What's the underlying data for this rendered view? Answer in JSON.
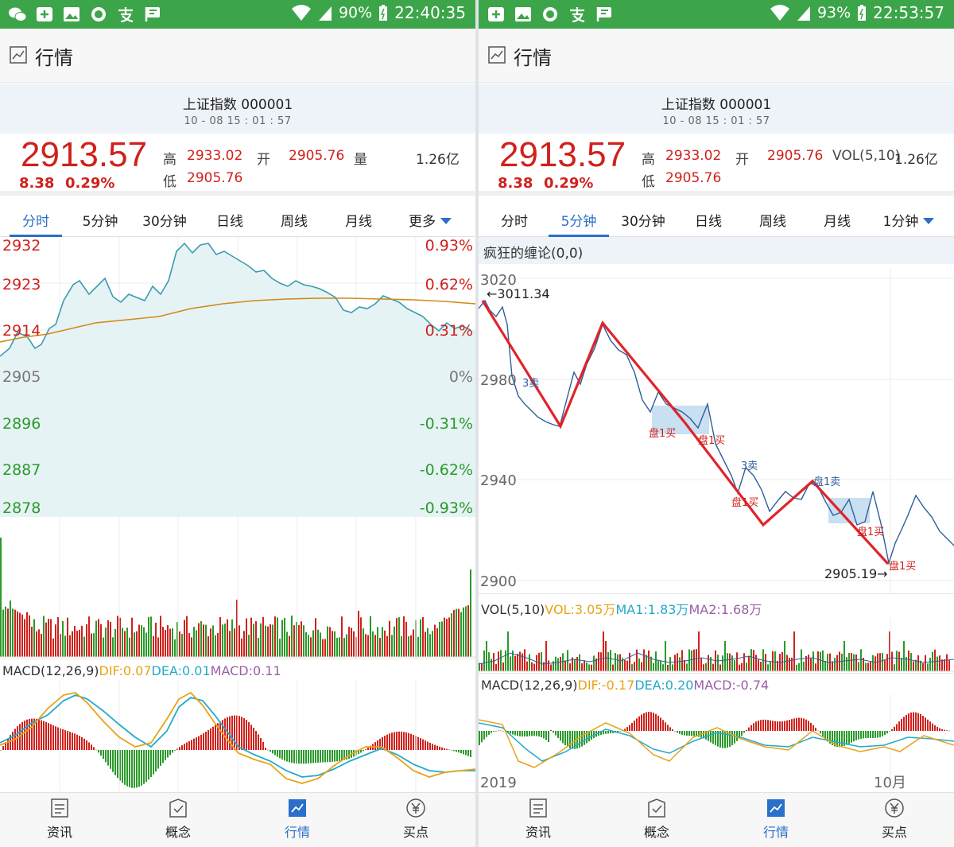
{
  "left": {
    "status": {
      "battery": "90%",
      "time": "22:40:35"
    },
    "title": "行情",
    "index_name": "上证指数 000001",
    "datetime": "10 - 08  15 : 01 : 57",
    "price": "2913.57",
    "change": "8.38",
    "change_pct": "0.29%",
    "high_label": "高",
    "high": "2933.02",
    "open_label": "开",
    "open": "2905.76",
    "vol_label": "量",
    "volume": "1.26亿",
    "low_label": "低",
    "low": "2905.76",
    "tabs": [
      "分时",
      "5分钟",
      "30分钟",
      "日线",
      "周线",
      "月线",
      "更多"
    ],
    "active_tab": 0,
    "macd_label": "MACD(12,26,9)",
    "dif": "DIF:0.07",
    "dea": "DEA:0.01",
    "macd": "MACD:0.11",
    "nav": [
      "资讯",
      "概念",
      "行情",
      "买点"
    ],
    "active_nav": 2
  },
  "right": {
    "status": {
      "battery": "93%",
      "time": "22:53:57"
    },
    "title": "行情",
    "index_name": "上证指数 000001",
    "datetime": "10 - 08  15 : 01 : 57",
    "price": "2913.57",
    "change": "8.38",
    "change_pct": "0.29%",
    "high_label": "高",
    "high": "2933.02",
    "open_label": "开",
    "open": "2905.76",
    "vol_label": "VOL(5,10)",
    "volume": "1.26亿",
    "low_label": "低",
    "low": "2905.76",
    "tabs": [
      "分时",
      "5分钟",
      "30分钟",
      "日线",
      "周线",
      "月线",
      "1分钟"
    ],
    "active_tab": 1,
    "indicator_title": "疯狂的缠论(0,0)",
    "vol_val": "VOL:3.05万",
    "ma1": "MA1:1.83万",
    "ma2": "MA2:1.68万",
    "macd_label": "MACD(12,26,9)",
    "dif": "DIF:-0.17",
    "dea": "DEA:0.20",
    "macd": "MACD:-0.74",
    "x_start": "2019",
    "x_month": "10月",
    "annotations": {
      "high": "←3011.34",
      "low": "2905.19→",
      "sell3a": "3卖",
      "buy1a": "盘1买",
      "buy1b": "盘1买",
      "sell3b": "3卖",
      "buy1c": "盘1买",
      "sell1": "盘1卖",
      "buy1d": "盘1买",
      "buy1e": "盘1买"
    },
    "nav": [
      "资讯",
      "概念",
      "行情",
      "买点"
    ],
    "active_nav": 2
  },
  "colors": {
    "up": "#d0211c",
    "down": "#2a9a2a",
    "accent": "#2a6fc9",
    "status_green": "#3ca54a",
    "dif": "#e8a317",
    "dea": "#22aacc",
    "macd": "#9b5ea6"
  },
  "chart_data": [
    {
      "type": "line",
      "title": "分时",
      "y_ticks": [
        "2932",
        "2923",
        "2914",
        "2905",
        "2896",
        "2887",
        "2878"
      ],
      "y_pct_ticks": [
        "0.93%",
        "0.62%",
        "0.31%",
        "0%",
        "-0.31%",
        "-0.62%",
        "-0.93%"
      ],
      "ylim": [
        2878,
        2932
      ],
      "series": [
        {
          "values": [
            2909,
            2911,
            2914,
            2912,
            2915,
            2914,
            2917,
            2916,
            2916,
            2918,
            2920,
            2922,
            2925,
            2923,
            2922,
            2924,
            2926,
            2925,
            2923,
            2921,
            2924,
            2926,
            2925,
            2927,
            2926,
            2924,
            2922,
            2920,
            2921,
            2924,
            2925,
            2930,
            2933,
            2931,
            2932,
            2931,
            2932,
            2930,
            2929,
            2928,
            2927,
            2925,
            2924,
            2923,
            2922,
            2923,
            2922,
            2921,
            2920,
            2921,
            2919,
            2917,
            2917,
            2918,
            2916,
            2918,
            2919,
            2920,
            2919,
            2918,
            2917,
            2916,
            2916,
            2915,
            2913,
            2914,
            2913,
            2914
          ]
        },
        {
          "values": [
            2913,
            2913,
            2913,
            2914,
            2914,
            2915,
            2915,
            2916,
            2916,
            2916,
            2917,
            2917,
            2917,
            2918,
            2918,
            2918,
            2918,
            2918,
            2919,
            2919,
            2919,
            2919,
            2919,
            2919,
            2919,
            2919,
            2919,
            2919,
            2920,
            2920,
            2920,
            2920,
            2920,
            2920,
            2920,
            2920,
            2920,
            2920,
            2920,
            2920,
            2920,
            2920,
            2920,
            2920,
            2920,
            2920,
            2920,
            2920,
            2920,
            2920,
            2920,
            2920,
            2920,
            2920,
            2920,
            2920,
            2920,
            2920,
            2920,
            2920,
            2920,
            2920,
            2920,
            2920,
            2920,
            2920,
            2920,
            2920
          ]
        }
      ]
    },
    {
      "type": "line",
      "title": "疯狂的缠论(0,0)",
      "y_ticks": [
        "3020",
        "2980",
        "2940",
        "2900"
      ],
      "ylim": [
        2900,
        3020
      ],
      "x_labels": [
        "2019",
        "10月"
      ],
      "series": [
        {
          "values": [
            3005,
            3011,
            3008,
            3003,
            3010,
            2995,
            2985,
            2980,
            2975,
            2972,
            2970,
            2968,
            2975,
            2982,
            2990,
            2985,
            2992,
            3000,
            3005,
            2995,
            2990,
            2985,
            2982,
            2975,
            2970,
            2965,
            2970,
            2975,
            2972,
            2968,
            2965,
            2968,
            2960,
            2955,
            2950,
            2948,
            2945,
            2935,
            2938,
            2945,
            2940,
            2936,
            2932,
            2935,
            2938,
            2940,
            2942,
            2938,
            2935,
            2932,
            2930,
            2928,
            2925,
            2922,
            2918,
            2910,
            2905,
            2915,
            2922,
            2925,
            2930,
            2928,
            2925,
            2922,
            2920
          ]
        },
        {
          "values": [
            3011.34,
            2970,
            3000,
            2940,
            2946,
            2922,
            2938,
            2905.19,
            2930
          ]
        }
      ]
    }
  ]
}
